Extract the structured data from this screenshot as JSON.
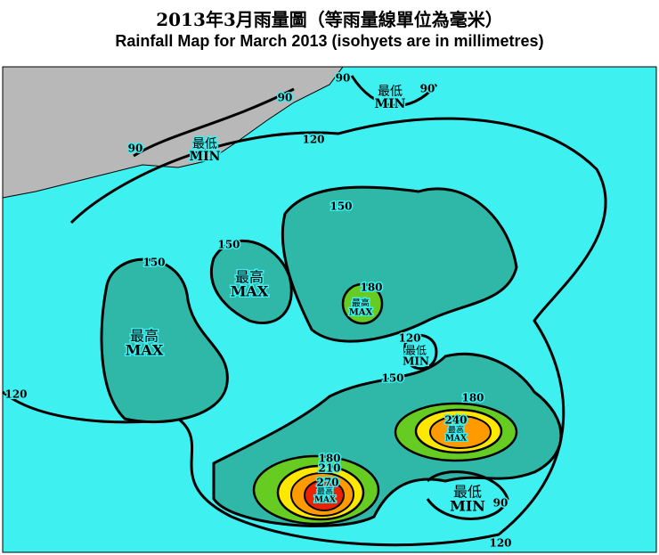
{
  "header": {
    "title_zh": "2013年3月雨量圖（等雨量線單位為毫米）",
    "title_en": "Rainfall Map for March 2013 (isohyets are in millimetres)"
  },
  "map": {
    "isohyet_labels": [
      "90",
      "90",
      "90",
      "90",
      "90",
      "120",
      "120",
      "120",
      "120",
      "150",
      "150",
      "150",
      "150",
      "180",
      "180",
      "180",
      "210",
      "240",
      "270"
    ],
    "extrema": [
      {
        "zh": "最低",
        "en": "MIN"
      },
      {
        "zh": "最低",
        "en": "MIN"
      },
      {
        "zh": "最高",
        "en": "MAX"
      },
      {
        "zh": "最高",
        "en": "MAX"
      },
      {
        "zh": "最高",
        "en": "MAX"
      },
      {
        "zh": "最低",
        "en": "MIN"
      },
      {
        "zh": "最高",
        "en": "MAX"
      },
      {
        "zh": "最高",
        "en": "MAX"
      },
      {
        "zh": "最低",
        "en": "MIN"
      }
    ]
  }
}
